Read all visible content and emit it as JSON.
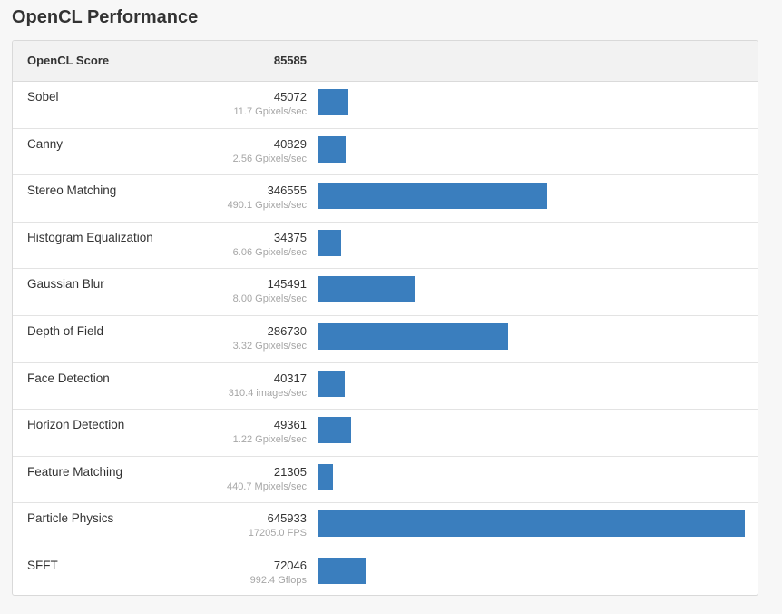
{
  "title": "OpenCL Performance",
  "header": {
    "label": "OpenCL Score",
    "score": "85585"
  },
  "colors": {
    "bar": "#3a7ebe",
    "header_bg": "#f2f2f2"
  },
  "chart_data": {
    "type": "bar",
    "orientation": "horizontal",
    "categories": [
      "Sobel",
      "Canny",
      "Stereo Matching",
      "Histogram Equalization",
      "Gaussian Blur",
      "Depth of Field",
      "Face Detection",
      "Horizon Detection",
      "Feature Matching",
      "Particle Physics",
      "SFFT"
    ],
    "values": [
      45072,
      40829,
      346555,
      34375,
      145491,
      286730,
      40317,
      49361,
      21305,
      645933,
      72046
    ],
    "subtitles": [
      "11.7 Gpixels/sec",
      "2.56 Gpixels/sec",
      "490.1 Gpixels/sec",
      "6.06 Gpixels/sec",
      "8.00 Gpixels/sec",
      "3.32 Gpixels/sec",
      "310.4 images/sec",
      "1.22 Gpixels/sec",
      "440.7 Mpixels/sec",
      "17205.0 FPS",
      "992.4 Gflops"
    ],
    "xlim": [
      0,
      645933
    ],
    "grid": false,
    "legend": "none"
  }
}
